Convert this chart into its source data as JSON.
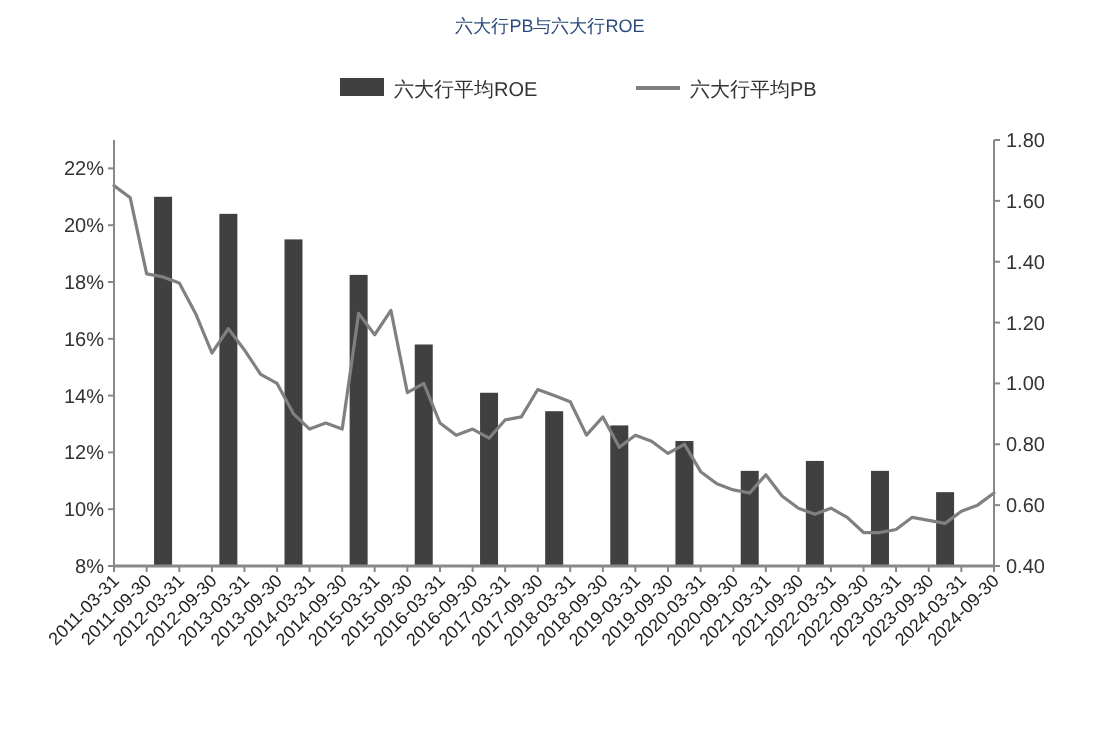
{
  "chart_data": {
    "type": "bar",
    "title": "六大行PB与六大行ROE",
    "xlim": [
      "2011-03-31",
      "2024-09-30"
    ],
    "xticks": [
      "2011-03-31",
      "2011-09-30",
      "2012-03-31",
      "2012-09-30",
      "2013-03-31",
      "2013-09-30",
      "2014-03-31",
      "2014-09-30",
      "2015-03-31",
      "2015-09-30",
      "2016-03-31",
      "2016-09-30",
      "2017-03-31",
      "2017-09-30",
      "2018-03-31",
      "2018-09-30",
      "2019-03-31",
      "2019-09-30",
      "2020-03-31",
      "2020-09-30",
      "2021-03-31",
      "2021-09-30",
      "2022-03-31",
      "2022-09-30",
      "2023-03-31",
      "2023-09-30",
      "2024-03-31",
      "2024-09-30"
    ],
    "ylim": [
      8,
      23
    ],
    "yticks": [
      {
        "value": 8,
        "label": "8%"
      },
      {
        "value": 10,
        "label": "10%"
      },
      {
        "value": 12,
        "label": "12%"
      },
      {
        "value": 14,
        "label": "14%"
      },
      {
        "value": 16,
        "label": "16%"
      },
      {
        "value": 18,
        "label": "18%"
      },
      {
        "value": 20,
        "label": "20%"
      },
      {
        "value": 22,
        "label": "22%"
      }
    ],
    "y2lim": [
      0.4,
      1.8
    ],
    "y2ticks": [
      {
        "value": 0.4,
        "label": "0.40"
      },
      {
        "value": 0.6,
        "label": "0.60"
      },
      {
        "value": 0.8,
        "label": "0.80"
      },
      {
        "value": 1.0,
        "label": "1.00"
      },
      {
        "value": 1.2,
        "label": "1.20"
      },
      {
        "value": 1.4,
        "label": "1.40"
      },
      {
        "value": 1.6,
        "label": "1.60"
      },
      {
        "value": 1.8,
        "label": "1.80"
      }
    ],
    "legend": "top",
    "grid": false,
    "series": [
      {
        "name": "六大行平均ROE",
        "color": "#404040",
        "x": [
          "2011-12-31",
          "2012-12-31",
          "2013-12-31",
          "2014-12-31",
          "2015-12-31",
          "2016-12-31",
          "2017-12-31",
          "2018-12-31",
          "2019-12-31",
          "2020-12-31",
          "2021-12-31",
          "2022-12-31",
          "2023-12-31"
        ],
        "values": [
          21.0,
          20.4,
          19.5,
          18.25,
          15.8,
          14.1,
          13.45,
          12.95,
          12.4,
          11.35,
          11.7,
          11.35,
          10.6
        ]
      },
      {
        "name": "六大行平均PB",
        "type": "line",
        "axis": "y2",
        "color": "#808080",
        "marker": "none",
        "line_style": "solid",
        "x": [
          "2011-03-31",
          "2011-06-30",
          "2011-09-30",
          "2011-12-31",
          "2012-03-31",
          "2012-06-30",
          "2012-09-30",
          "2012-12-31",
          "2013-03-31",
          "2013-06-30",
          "2013-09-30",
          "2013-12-31",
          "2014-03-31",
          "2014-06-30",
          "2014-09-30",
          "2014-12-31",
          "2015-03-31",
          "2015-06-30",
          "2015-09-30",
          "2015-12-31",
          "2016-03-31",
          "2016-06-30",
          "2016-09-30",
          "2016-12-31",
          "2017-03-31",
          "2017-06-30",
          "2017-09-30",
          "2017-12-31",
          "2018-03-31",
          "2018-06-30",
          "2018-09-30",
          "2018-12-31",
          "2019-03-31",
          "2019-06-30",
          "2019-09-30",
          "2019-12-31",
          "2020-03-31",
          "2020-06-30",
          "2020-09-30",
          "2020-12-31",
          "2021-03-31",
          "2021-06-30",
          "2021-09-30",
          "2021-12-31",
          "2022-03-31",
          "2022-06-30",
          "2022-09-30",
          "2022-12-31",
          "2023-03-31",
          "2023-06-30",
          "2023-09-30",
          "2023-12-31",
          "2024-03-31",
          "2024-06-30",
          "2024-09-30"
        ],
        "values": [
          1.65,
          1.61,
          1.36,
          1.35,
          1.33,
          1.23,
          1.1,
          1.18,
          1.11,
          1.03,
          1.0,
          0.9,
          0.85,
          0.87,
          0.85,
          1.23,
          1.16,
          1.24,
          0.97,
          1.0,
          0.87,
          0.83,
          0.85,
          0.82,
          0.88,
          0.89,
          0.98,
          0.96,
          0.94,
          0.83,
          0.89,
          0.79,
          0.83,
          0.81,
          0.77,
          0.8,
          0.71,
          0.67,
          0.65,
          0.64,
          0.7,
          0.63,
          0.59,
          0.57,
          0.59,
          0.56,
          0.51,
          0.51,
          0.52,
          0.56,
          0.55,
          0.54,
          0.58,
          0.6,
          0.64
        ]
      }
    ]
  }
}
